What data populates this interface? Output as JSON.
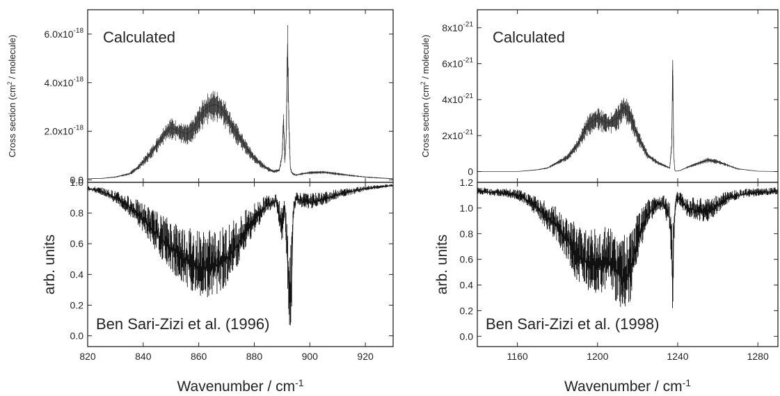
{
  "chart_data": [
    {
      "type": "line",
      "panel": "top-left",
      "annotation": "Calculated",
      "ylabel": "Cross section (cm",
      "ylabel_sup": "2",
      "ylabel_tail": " / molecule)",
      "xlim": [
        820,
        930
      ],
      "ylim": [
        -0.1,
        7.0
      ],
      "y_scale_note": "values in units of 1e-18",
      "y_ticks": [
        0,
        2,
        4,
        6
      ],
      "y_tick_labels": [
        {
          "base": "0.0",
          "sup": ""
        },
        {
          "base": "2.0x10",
          "sup": "-18"
        },
        {
          "base": "4.0x10",
          "sup": "-18"
        },
        {
          "base": "6.0x10",
          "sup": "-18"
        }
      ],
      "series": [
        {
          "x": [
            820,
            825,
            830,
            835,
            838,
            842,
            845,
            848,
            850,
            852,
            854,
            856,
            858,
            860,
            862,
            864,
            866,
            868,
            870,
            872,
            875,
            878,
            880,
            883,
            885,
            887,
            889,
            890,
            890.5,
            891,
            891.5,
            892,
            892.5,
            893,
            893.5,
            894,
            895,
            897,
            900,
            905,
            910,
            915,
            920,
            925,
            930
          ],
          "y": [
            0.05,
            0.06,
            0.12,
            0.25,
            0.5,
            1.0,
            1.45,
            1.95,
            2.15,
            2.05,
            1.95,
            1.9,
            2.1,
            2.5,
            2.85,
            3.05,
            3.1,
            2.95,
            2.65,
            2.2,
            1.7,
            1.2,
            0.9,
            0.6,
            0.45,
            0.35,
            0.4,
            1.0,
            2.5,
            0.8,
            1.8,
            5.6,
            2.2,
            0.5,
            0.3,
            0.25,
            0.2,
            0.25,
            0.3,
            0.32,
            0.25,
            0.18,
            0.12,
            0.08,
            0.05
          ]
        }
      ]
    },
    {
      "type": "line",
      "panel": "bottom-left",
      "annotation": "Ben Sari-Zizi et al. (1996)",
      "ylabel": "arb. units",
      "xlabel": "Wavenumber / cm",
      "xlabel_sup": "-1",
      "xlim": [
        820,
        930
      ],
      "ylim": [
        -0.07,
        1.0
      ],
      "x_ticks": [
        820,
        840,
        860,
        880,
        900,
        920
      ],
      "y_ticks": [
        0.0,
        0.2,
        0.4,
        0.6,
        0.8,
        1.0
      ],
      "y_tick_labels": [
        "0.0",
        "0.2",
        "0.4",
        "0.6",
        "0.8",
        "1.0"
      ],
      "series": [
        {
          "x": [
            820,
            825,
            830,
            835,
            840,
            845,
            850,
            855,
            860,
            865,
            870,
            875,
            880,
            885,
            888,
            890,
            891,
            892,
            892.5,
            893,
            893.5,
            894,
            895,
            897,
            900,
            905,
            910,
            915,
            920,
            925,
            930
          ],
          "y": [
            0.96,
            0.94,
            0.9,
            0.84,
            0.76,
            0.66,
            0.57,
            0.5,
            0.45,
            0.44,
            0.5,
            0.62,
            0.76,
            0.86,
            0.88,
            0.7,
            0.85,
            0.48,
            0.3,
            0.22,
            0.4,
            0.8,
            0.9,
            0.88,
            0.87,
            0.89,
            0.92,
            0.94,
            0.96,
            0.97,
            0.98
          ]
        }
      ]
    },
    {
      "type": "line",
      "panel": "top-right",
      "annotation": "Calculated",
      "ylabel": "Cross section (cm",
      "ylabel_sup": "2",
      "ylabel_tail": " / molecule)",
      "xlim": [
        1140,
        1290
      ],
      "ylim": [
        -0.6,
        9.0
      ],
      "y_scale_note": "values in units of 1e-21",
      "y_ticks": [
        0,
        2,
        4,
        6,
        8
      ],
      "y_tick_labels": [
        {
          "base": "0",
          "sup": ""
        },
        {
          "base": "2x10",
          "sup": "-21"
        },
        {
          "base": "4x10",
          "sup": "-21"
        },
        {
          "base": "6x10",
          "sup": "-21"
        },
        {
          "base": "8x10",
          "sup": "-21"
        }
      ],
      "series": [
        {
          "x": [
            1140,
            1150,
            1160,
            1165,
            1170,
            1175,
            1180,
            1185,
            1190,
            1195,
            1200,
            1203,
            1206,
            1210,
            1213,
            1216,
            1220,
            1225,
            1230,
            1234,
            1236,
            1237,
            1237.5,
            1238,
            1238.5,
            1239,
            1241,
            1245,
            1250,
            1255,
            1260,
            1265,
            1270,
            1280,
            1290
          ],
          "y": [
            0,
            0,
            0,
            0.05,
            0.1,
            0.2,
            0.5,
            0.8,
            1.5,
            2.6,
            3.0,
            2.8,
            2.7,
            3.0,
            3.6,
            3.2,
            2.0,
            0.9,
            0.5,
            0.3,
            0.2,
            1.5,
            6.2,
            1.0,
            0.1,
            0.02,
            0.05,
            0.25,
            0.45,
            0.65,
            0.55,
            0.35,
            0.15,
            0.02,
            0
          ]
        }
      ]
    },
    {
      "type": "line",
      "panel": "bottom-right",
      "annotation": "Ben Sari-Zizi et al. (1998)",
      "ylabel": "arb. units",
      "xlabel": "Wavenumber / cm",
      "xlabel_sup": "-1",
      "xlim": [
        1140,
        1290
      ],
      "ylim": [
        -0.08,
        1.2
      ],
      "x_ticks": [
        1160,
        1200,
        1240,
        1280
      ],
      "y_ticks": [
        0.0,
        0.2,
        0.4,
        0.6,
        0.8,
        1.0,
        1.2
      ],
      "y_tick_labels": [
        "0.0",
        "0.2",
        "0.4",
        "0.6",
        "0.8",
        "1.0",
        "1.2"
      ],
      "series": [
        {
          "x": [
            1140,
            1150,
            1160,
            1165,
            1170,
            1175,
            1180,
            1185,
            1190,
            1195,
            1200,
            1205,
            1210,
            1213,
            1216,
            1220,
            1225,
            1230,
            1233,
            1235,
            1236,
            1237,
            1237.5,
            1238,
            1238.5,
            1239,
            1240,
            1242,
            1245,
            1250,
            1255,
            1260,
            1265,
            1270,
            1280,
            1290
          ],
          "y": [
            1.13,
            1.12,
            1.1,
            1.06,
            1.0,
            0.92,
            0.85,
            0.75,
            0.62,
            0.57,
            0.55,
            0.58,
            0.5,
            0.45,
            0.5,
            0.75,
            0.95,
            1.03,
            1.04,
            0.95,
            0.92,
            0.7,
            0.35,
            0.8,
            0.95,
            1.05,
            1.08,
            1.05,
            1.0,
            0.98,
            0.97,
            1.02,
            1.08,
            1.1,
            1.12,
            1.13
          ]
        }
      ]
    }
  ]
}
